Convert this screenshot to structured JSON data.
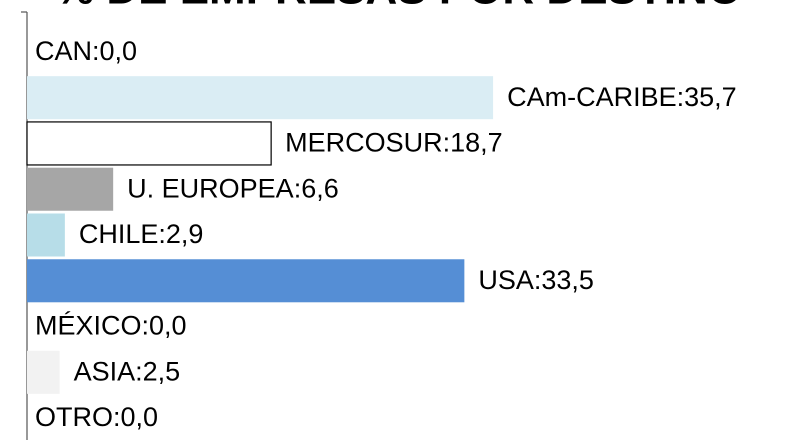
{
  "chart_data": {
    "type": "barh",
    "title": "% DE EMPRESAS POR DESTINO",
    "values": [
      0.0,
      35.7,
      18.7,
      6.6,
      2.9,
      33.5,
      0.0,
      2.5,
      0.0
    ],
    "value_labels": [
      "CAN:0,0",
      "CAm-CARIBE:35,7",
      "MERCOSUR:18,7",
      "U. EUROPEA:6,6",
      "CHILE:2,9",
      "USA:33,5",
      "MÉXICO:0,0",
      "ASIA:2,5",
      "OTRO:0,0"
    ],
    "colors": [
      "#ffffff",
      "#daedf4",
      "#ffffff",
      "#a6a6a6",
      "#b7dde8",
      "#558ed5",
      "#ffffff",
      "#f2f2f2",
      "#ffffff"
    ],
    "edgecolors": [
      null,
      null,
      "#000000",
      null,
      null,
      null,
      null,
      null,
      null
    ],
    "title_color": "#1f1fe0",
    "xlim": [
      0,
      36
    ]
  }
}
